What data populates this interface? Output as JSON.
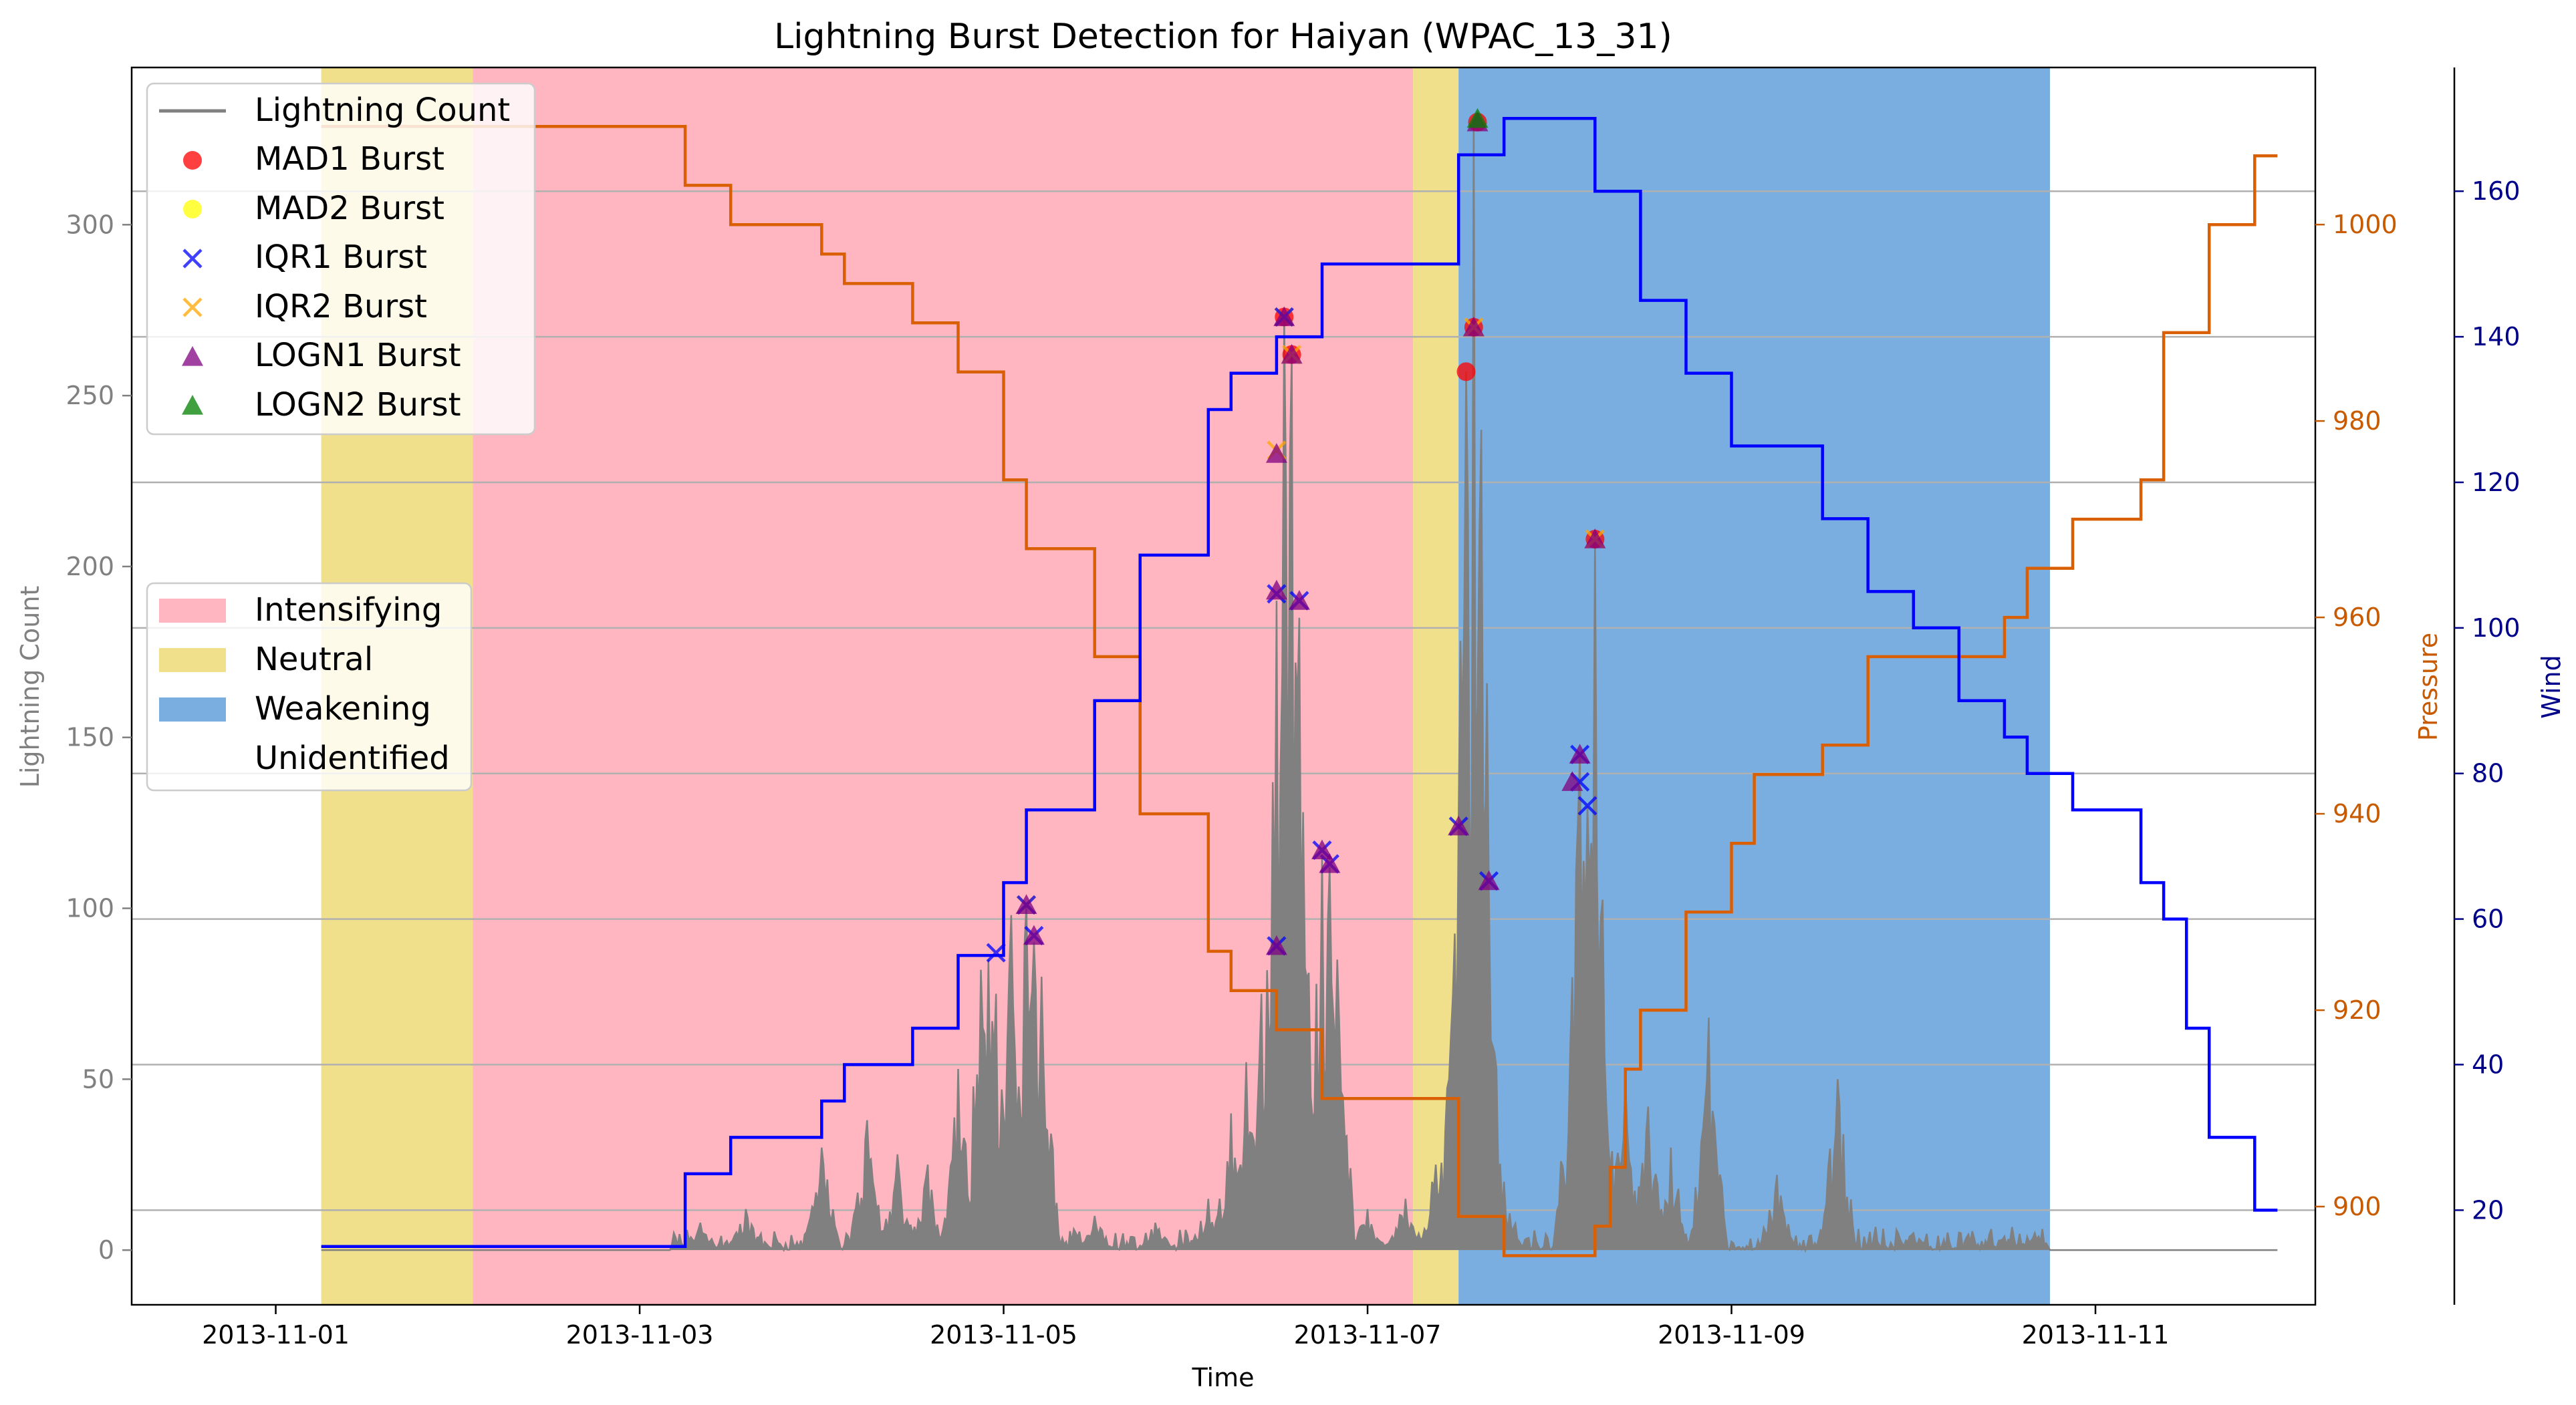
{
  "chart_data": {
    "type": "line",
    "title": "Lightning Burst Detection for Haiyan (WPAC_13_31)",
    "xlabel": "Time",
    "ylabel_left": "Lightning Count",
    "ylabel_pressure": "Pressure",
    "ylabel_wind": "Wind",
    "colors": {
      "lightning": "#808080",
      "pressure": "#d95f02",
      "wind": "#0000ff",
      "pressure_axis": "#c85a00",
      "wind_axis": "#00008b",
      "intensifying": "#ffb6c1",
      "neutral": "#f0e08c",
      "weakening": "#7aaee0",
      "mad1": "#ff0000",
      "mad2": "#ffff00",
      "iqr1": "#0000ff",
      "iqr2": "#ffa500",
      "logn1": "#800080",
      "logn2": "#008000"
    },
    "axes": {
      "x_range": [
        "2013-10-31T05:00",
        "2013-11-12T05:00"
      ],
      "x_ticks": [
        "2013-11-01",
        "2013-11-03",
        "2013-11-05",
        "2013-11-07",
        "2013-11-09",
        "2013-11-11"
      ],
      "y_left_range": [
        -16,
        346
      ],
      "y_left_ticks": [
        0,
        50,
        100,
        150,
        200,
        250,
        300
      ],
      "pressure_range": [
        890,
        1016
      ],
      "pressure_ticks": [
        900,
        920,
        940,
        960,
        980,
        1000
      ],
      "wind_range": [
        7,
        177
      ],
      "wind_ticks": [
        20,
        40,
        60,
        80,
        100,
        120,
        140,
        160
      ],
      "grid": "horizontal lines at wind ticks"
    },
    "legend_top": {
      "placement": "upper-left",
      "entries": [
        "Lightning Count",
        "MAD1 Burst",
        "MAD2 Burst",
        "IQR1 Burst",
        "IQR2 Burst",
        "LOGN1 Burst",
        "LOGN2 Burst"
      ]
    },
    "legend_phase": {
      "placement": "center-left",
      "entries": [
        "Intensifying",
        "Neutral",
        "Weakening",
        "Unidentified"
      ]
    },
    "phases": [
      {
        "label": "Neutral",
        "start": "2013-11-01T06:00",
        "end": "2013-11-02T02:00"
      },
      {
        "label": "Intensifying",
        "start": "2013-11-02T02:00",
        "end": "2013-11-07T06:00"
      },
      {
        "label": "Neutral",
        "start": "2013-11-07T06:00",
        "end": "2013-11-07T12:00"
      },
      {
        "label": "Weakening",
        "start": "2013-11-07T12:00",
        "end": "2013-11-10T18:00"
      }
    ],
    "pressure_series": {
      "name": "Pressure",
      "points": [
        [
          "2013-11-01T06:00",
          1010
        ],
        [
          "2013-11-03T06:00",
          1010
        ],
        [
          "2013-11-03T06:00",
          1004
        ],
        [
          "2013-11-03T12:00",
          1004
        ],
        [
          "2013-11-03T12:00",
          1000
        ],
        [
          "2013-11-04T00:00",
          1000
        ],
        [
          "2013-11-04T00:00",
          997
        ],
        [
          "2013-11-04T03:00",
          997
        ],
        [
          "2013-11-04T03:00",
          994
        ],
        [
          "2013-11-04T12:00",
          994
        ],
        [
          "2013-11-04T12:00",
          990
        ],
        [
          "2013-11-04T18:00",
          990
        ],
        [
          "2013-11-04T18:00",
          985
        ],
        [
          "2013-11-05T00:00",
          985
        ],
        [
          "2013-11-05T00:00",
          974
        ],
        [
          "2013-11-05T03:00",
          974
        ],
        [
          "2013-11-05T03:00",
          967
        ],
        [
          "2013-11-05T12:00",
          967
        ],
        [
          "2013-11-05T12:00",
          956
        ],
        [
          "2013-11-05T18:00",
          956
        ],
        [
          "2013-11-05T18:00",
          940
        ],
        [
          "2013-11-06T03:00",
          940
        ],
        [
          "2013-11-06T03:00",
          926
        ],
        [
          "2013-11-06T06:00",
          926
        ],
        [
          "2013-11-06T06:00",
          922
        ],
        [
          "2013-11-06T12:00",
          922
        ],
        [
          "2013-11-06T12:00",
          918
        ],
        [
          "2013-11-06T18:00",
          918
        ],
        [
          "2013-11-06T18:00",
          911
        ],
        [
          "2013-11-07T12:00",
          911
        ],
        [
          "2013-11-07T12:00",
          899
        ],
        [
          "2013-11-07T18:00",
          899
        ],
        [
          "2013-11-07T18:00",
          895
        ],
        [
          "2013-11-08T06:00",
          895
        ],
        [
          "2013-11-08T06:00",
          898
        ],
        [
          "2013-11-08T08:00",
          898
        ],
        [
          "2013-11-08T08:00",
          904
        ],
        [
          "2013-11-08T10:00",
          904
        ],
        [
          "2013-11-08T10:00",
          914
        ],
        [
          "2013-11-08T12:00",
          914
        ],
        [
          "2013-11-08T12:00",
          920
        ],
        [
          "2013-11-08T18:00",
          920
        ],
        [
          "2013-11-08T18:00",
          930
        ],
        [
          "2013-11-09T00:00",
          930
        ],
        [
          "2013-11-09T00:00",
          937
        ],
        [
          "2013-11-09T03:00",
          937
        ],
        [
          "2013-11-09T03:00",
          944
        ],
        [
          "2013-11-09T12:00",
          944
        ],
        [
          "2013-11-09T12:00",
          947
        ],
        [
          "2013-11-09T18:00",
          947
        ],
        [
          "2013-11-09T18:00",
          956
        ],
        [
          "2013-11-10T12:00",
          956
        ],
        [
          "2013-11-10T12:00",
          960
        ],
        [
          "2013-11-10T15:00",
          960
        ],
        [
          "2013-11-10T15:00",
          965
        ],
        [
          "2013-11-10T21:00",
          965
        ],
        [
          "2013-11-10T21:00",
          970
        ],
        [
          "2013-11-11T06:00",
          970
        ],
        [
          "2013-11-11T06:00",
          974
        ],
        [
          "2013-11-11T09:00",
          974
        ],
        [
          "2013-11-11T09:00",
          989
        ],
        [
          "2013-11-11T15:00",
          989
        ],
        [
          "2013-11-11T15:00",
          1000
        ],
        [
          "2013-11-11T21:00",
          1000
        ],
        [
          "2013-11-11T21:00",
          1007
        ],
        [
          "2013-11-12T00:00",
          1007
        ]
      ]
    },
    "wind_series": {
      "name": "Wind",
      "points": [
        [
          "2013-11-01T06:00",
          15
        ],
        [
          "2013-11-03T06:00",
          15
        ],
        [
          "2013-11-03T06:00",
          25
        ],
        [
          "2013-11-03T12:00",
          25
        ],
        [
          "2013-11-03T12:00",
          30
        ],
        [
          "2013-11-04T00:00",
          30
        ],
        [
          "2013-11-04T00:00",
          35
        ],
        [
          "2013-11-04T03:00",
          35
        ],
        [
          "2013-11-04T03:00",
          40
        ],
        [
          "2013-11-04T12:00",
          40
        ],
        [
          "2013-11-04T12:00",
          45
        ],
        [
          "2013-11-04T18:00",
          45
        ],
        [
          "2013-11-04T18:00",
          55
        ],
        [
          "2013-11-05T00:00",
          55
        ],
        [
          "2013-11-05T00:00",
          65
        ],
        [
          "2013-11-05T03:00",
          65
        ],
        [
          "2013-11-05T03:00",
          75
        ],
        [
          "2013-11-05T12:00",
          75
        ],
        [
          "2013-11-05T12:00",
          90
        ],
        [
          "2013-11-05T18:00",
          90
        ],
        [
          "2013-11-05T18:00",
          110
        ],
        [
          "2013-11-06T03:00",
          110
        ],
        [
          "2013-11-06T03:00",
          130
        ],
        [
          "2013-11-06T06:00",
          130
        ],
        [
          "2013-11-06T06:00",
          135
        ],
        [
          "2013-11-06T12:00",
          135
        ],
        [
          "2013-11-06T12:00",
          140
        ],
        [
          "2013-11-06T18:00",
          140
        ],
        [
          "2013-11-06T18:00",
          150
        ],
        [
          "2013-11-07T12:00",
          150
        ],
        [
          "2013-11-07T12:00",
          165
        ],
        [
          "2013-11-07T18:00",
          165
        ],
        [
          "2013-11-07T18:00",
          170
        ],
        [
          "2013-11-08T06:00",
          170
        ],
        [
          "2013-11-08T06:00",
          160
        ],
        [
          "2013-11-08T12:00",
          160
        ],
        [
          "2013-11-08T12:00",
          145
        ],
        [
          "2013-11-08T18:00",
          145
        ],
        [
          "2013-11-08T18:00",
          135
        ],
        [
          "2013-11-09T00:00",
          135
        ],
        [
          "2013-11-09T00:00",
          125
        ],
        [
          "2013-11-09T12:00",
          125
        ],
        [
          "2013-11-09T12:00",
          115
        ],
        [
          "2013-11-09T18:00",
          115
        ],
        [
          "2013-11-09T18:00",
          105
        ],
        [
          "2013-11-10T00:00",
          105
        ],
        [
          "2013-11-10T00:00",
          100
        ],
        [
          "2013-11-10T06:00",
          100
        ],
        [
          "2013-11-10T06:00",
          90
        ],
        [
          "2013-11-10T12:00",
          90
        ],
        [
          "2013-11-10T12:00",
          85
        ],
        [
          "2013-11-10T15:00",
          85
        ],
        [
          "2013-11-10T15:00",
          80
        ],
        [
          "2013-11-10T21:00",
          80
        ],
        [
          "2013-11-10T21:00",
          75
        ],
        [
          "2013-11-11T06:00",
          75
        ],
        [
          "2013-11-11T06:00",
          65
        ],
        [
          "2013-11-11T09:00",
          65
        ],
        [
          "2013-11-11T09:00",
          60
        ],
        [
          "2013-11-11T12:00",
          60
        ],
        [
          "2013-11-11T12:00",
          45
        ],
        [
          "2013-11-11T15:00",
          45
        ],
        [
          "2013-11-11T15:00",
          30
        ],
        [
          "2013-11-11T21:00",
          30
        ],
        [
          "2013-11-11T21:00",
          20
        ],
        [
          "2013-11-12T00:00",
          20
        ]
      ]
    },
    "lightning_series": {
      "name": "Lightning Count",
      "start": "2013-11-01T06:00",
      "end": "2013-11-12T00:00",
      "baseline_from": "2013-11-10T18:00",
      "background_max": 8,
      "peaks": [
        [
          "2013-11-03T08:00",
          8
        ],
        [
          "2013-11-03T14:00",
          12
        ],
        [
          "2013-11-04T00:00",
          30
        ],
        [
          "2013-11-04T06:00",
          38
        ],
        [
          "2013-11-04T10:00",
          28
        ],
        [
          "2013-11-04T14:00",
          25
        ],
        [
          "2013-11-04T18:00",
          53
        ],
        [
          "2013-11-04T21:00",
          82
        ],
        [
          "2013-11-04T22:00",
          85
        ],
        [
          "2013-11-04T23:00",
          75
        ],
        [
          "2013-11-05T01:00",
          98
        ],
        [
          "2013-11-05T03:00",
          101
        ],
        [
          "2013-11-05T04:00",
          90
        ],
        [
          "2013-11-05T05:00",
          80
        ],
        [
          "2013-11-05T12:00",
          10
        ],
        [
          "2013-11-05T20:00",
          8
        ],
        [
          "2013-11-06T03:00",
          15
        ],
        [
          "2013-11-06T06:00",
          40
        ],
        [
          "2013-11-06T08:00",
          55
        ],
        [
          "2013-11-06T10:00",
          75
        ],
        [
          "2013-11-06T12:00",
          190
        ],
        [
          "2013-11-06T13:00",
          272
        ],
        [
          "2013-11-06T14:00",
          262
        ],
        [
          "2013-11-06T15:00",
          185
        ],
        [
          "2013-11-06T18:00",
          115
        ],
        [
          "2013-11-06T19:00",
          112
        ],
        [
          "2013-11-06T20:00",
          85
        ],
        [
          "2013-11-07T00:00",
          12
        ],
        [
          "2013-11-07T05:00",
          15
        ],
        [
          "2013-11-07T09:00",
          25
        ],
        [
          "2013-11-07T11:00",
          63
        ],
        [
          "2013-11-07T12:00",
          120
        ],
        [
          "2013-11-07T13:00",
          257
        ],
        [
          "2013-11-07T14:00",
          330
        ],
        [
          "2013-11-07T15:00",
          240
        ],
        [
          "2013-11-07T16:00",
          105
        ],
        [
          "2013-11-07T18:00",
          20
        ],
        [
          "2013-11-08T03:00",
          75
        ],
        [
          "2013-11-08T04:00",
          145
        ],
        [
          "2013-11-08T05:00",
          130
        ],
        [
          "2013-11-08T06:00",
          208
        ],
        [
          "2013-11-08T07:00",
          60
        ],
        [
          "2013-11-08T10:00",
          50
        ],
        [
          "2013-11-08T13:00",
          42
        ],
        [
          "2013-11-08T16:00",
          30
        ],
        [
          "2013-11-08T21:00",
          68
        ],
        [
          "2013-11-09T06:00",
          22
        ],
        [
          "2013-11-09T14:00",
          50
        ],
        [
          "2013-11-10T00:00",
          5
        ],
        [
          "2013-11-10T12:00",
          4
        ],
        [
          "2013-11-10T16:00",
          5
        ]
      ]
    },
    "bursts": {
      "mad1": [
        [
          "2013-11-06T13:00",
          273
        ],
        [
          "2013-11-06T14:00",
          262
        ],
        [
          "2013-11-07T13:00",
          257
        ],
        [
          "2013-11-07T14:00",
          270
        ],
        [
          "2013-11-07T14:30",
          330
        ],
        [
          "2013-11-08T06:00",
          208
        ]
      ],
      "mad2": [],
      "iqr1": [
        [
          "2013-11-04T23:00",
          87
        ],
        [
          "2013-11-05T03:00",
          101
        ],
        [
          "2013-11-05T04:00",
          92
        ],
        [
          "2013-11-06T12:00",
          89
        ],
        [
          "2013-11-06T12:00",
          192
        ],
        [
          "2013-11-06T13:00",
          273
        ],
        [
          "2013-11-06T15:00",
          190
        ],
        [
          "2013-11-06T18:00",
          117
        ],
        [
          "2013-11-06T19:00",
          113
        ],
        [
          "2013-11-07T12:00",
          124
        ],
        [
          "2013-11-07T16:00",
          108
        ],
        [
          "2013-11-08T04:00",
          145
        ],
        [
          "2013-11-08T04:00",
          137
        ],
        [
          "2013-11-08T05:00",
          130
        ]
      ],
      "iqr2": [
        [
          "2013-11-05T03:00",
          101
        ],
        [
          "2013-11-06T12:00",
          234
        ],
        [
          "2013-11-06T13:00",
          273
        ],
        [
          "2013-11-06T14:00",
          262
        ],
        [
          "2013-11-07T14:00",
          270
        ],
        [
          "2013-11-08T06:00",
          208
        ]
      ],
      "logn1": [
        [
          "2013-11-05T03:00",
          101
        ],
        [
          "2013-11-05T04:00",
          92
        ],
        [
          "2013-11-06T12:00",
          89
        ],
        [
          "2013-11-06T12:00",
          233
        ],
        [
          "2013-11-06T12:00",
          193
        ],
        [
          "2013-11-06T13:00",
          273
        ],
        [
          "2013-11-06T14:00",
          262
        ],
        [
          "2013-11-06T15:00",
          190
        ],
        [
          "2013-11-06T18:00",
          117
        ],
        [
          "2013-11-06T19:00",
          113
        ],
        [
          "2013-11-07T12:00",
          124
        ],
        [
          "2013-11-07T14:00",
          270
        ],
        [
          "2013-11-07T14:30",
          330
        ],
        [
          "2013-11-07T16:00",
          108
        ],
        [
          "2013-11-08T03:00",
          137
        ],
        [
          "2013-11-08T04:00",
          145
        ],
        [
          "2013-11-08T06:00",
          208
        ]
      ],
      "logn2": [
        [
          "2013-11-07T14:30",
          331
        ]
      ]
    }
  }
}
